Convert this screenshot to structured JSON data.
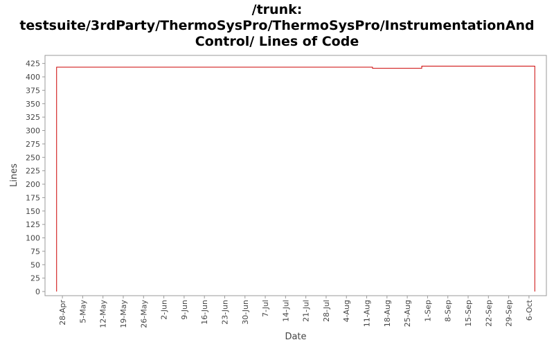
{
  "chart_data": {
    "type": "line",
    "title": [
      "/trunk:",
      "testsuite/3rdParty/ThermoSysPro/ThermoSysPro/InstrumentationAnd",
      "Control/ Lines of Code"
    ],
    "x_label": "Date",
    "y_label": "Lines",
    "series": [
      {
        "name": "Lines",
        "color": "#cc0000",
        "x": [
          "26-Apr",
          "26-Apr",
          "13-Aug",
          "13-Aug",
          "30-Aug",
          "30-Aug",
          "8-Oct",
          "8-Oct"
        ],
        "values": [
          0,
          418,
          418,
          416,
          416,
          420,
          420,
          0
        ]
      }
    ],
    "xlim": [
      "22-Apr",
      "12-Oct"
    ],
    "xticks": [
      "28-Apr",
      "5-May",
      "12-May",
      "19-May",
      "26-May",
      "2-Jun",
      "9-Jun",
      "16-Jun",
      "23-Jun",
      "30-Jun",
      "7-Jul",
      "14-Jul",
      "21-Jul",
      "28-Jul",
      "4-Aug",
      "11-Aug",
      "18-Aug",
      "25-Aug",
      "1-Sep",
      "8-Sep",
      "15-Sep",
      "22-Sep",
      "29-Sep",
      "6-Oct"
    ],
    "ylim": [
      0,
      440
    ],
    "yticks": [
      0,
      25,
      50,
      75,
      100,
      125,
      150,
      175,
      200,
      225,
      250,
      275,
      300,
      325,
      350,
      375,
      400,
      425
    ],
    "grid": false
  }
}
